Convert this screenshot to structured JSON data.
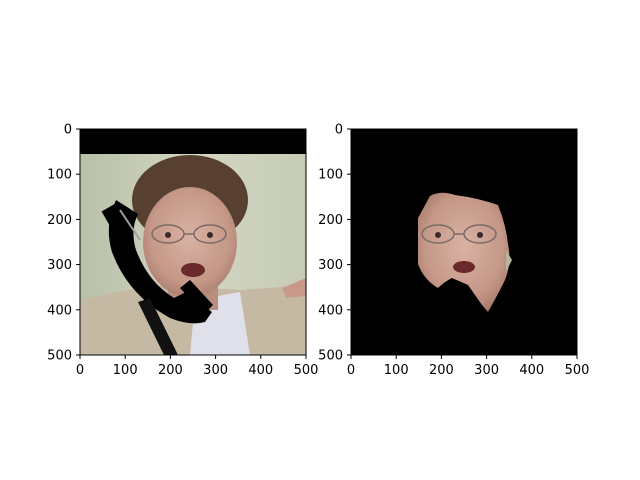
{
  "figure": {
    "background": "#ffffff",
    "axis_color": "#000000"
  },
  "chart_data": [
    {
      "type": "image",
      "panel": "left",
      "xlim": [
        0,
        500
      ],
      "ylim": [
        500,
        0
      ],
      "y_inverted": true,
      "grid": false,
      "xticks": [
        0,
        100,
        200,
        300,
        400,
        500
      ],
      "yticks": [
        0,
        100,
        200,
        300,
        400,
        500
      ],
      "xtick_labels": [
        "0",
        "100",
        "200",
        "300",
        "400",
        "500"
      ],
      "ytick_labels": [
        "0",
        "100",
        "200",
        "300",
        "400",
        "500"
      ],
      "content": "face photo with black telephone-handset occlusion and black band at top",
      "black_band_y": [
        0,
        55
      ],
      "colors": {
        "black": "#000000",
        "background": "#c4cbb2",
        "hair": "#5a4030",
        "skin": "#caa292",
        "jacket": "#c9bca8"
      }
    },
    {
      "type": "image",
      "panel": "right",
      "xlim": [
        0,
        500
      ],
      "ylim": [
        500,
        0
      ],
      "y_inverted": true,
      "grid": false,
      "xticks": [
        0,
        100,
        200,
        300,
        400,
        500
      ],
      "yticks": [
        0,
        100,
        200,
        300,
        400,
        500
      ],
      "xtick_labels": [
        "0",
        "100",
        "200",
        "300",
        "400",
        "500"
      ],
      "ytick_labels": [
        "0",
        "100",
        "200",
        "300",
        "400",
        "500"
      ],
      "content": "segmented face mask region on black background",
      "colors": {
        "black": "#000000",
        "skin": "#c9a293"
      }
    }
  ]
}
